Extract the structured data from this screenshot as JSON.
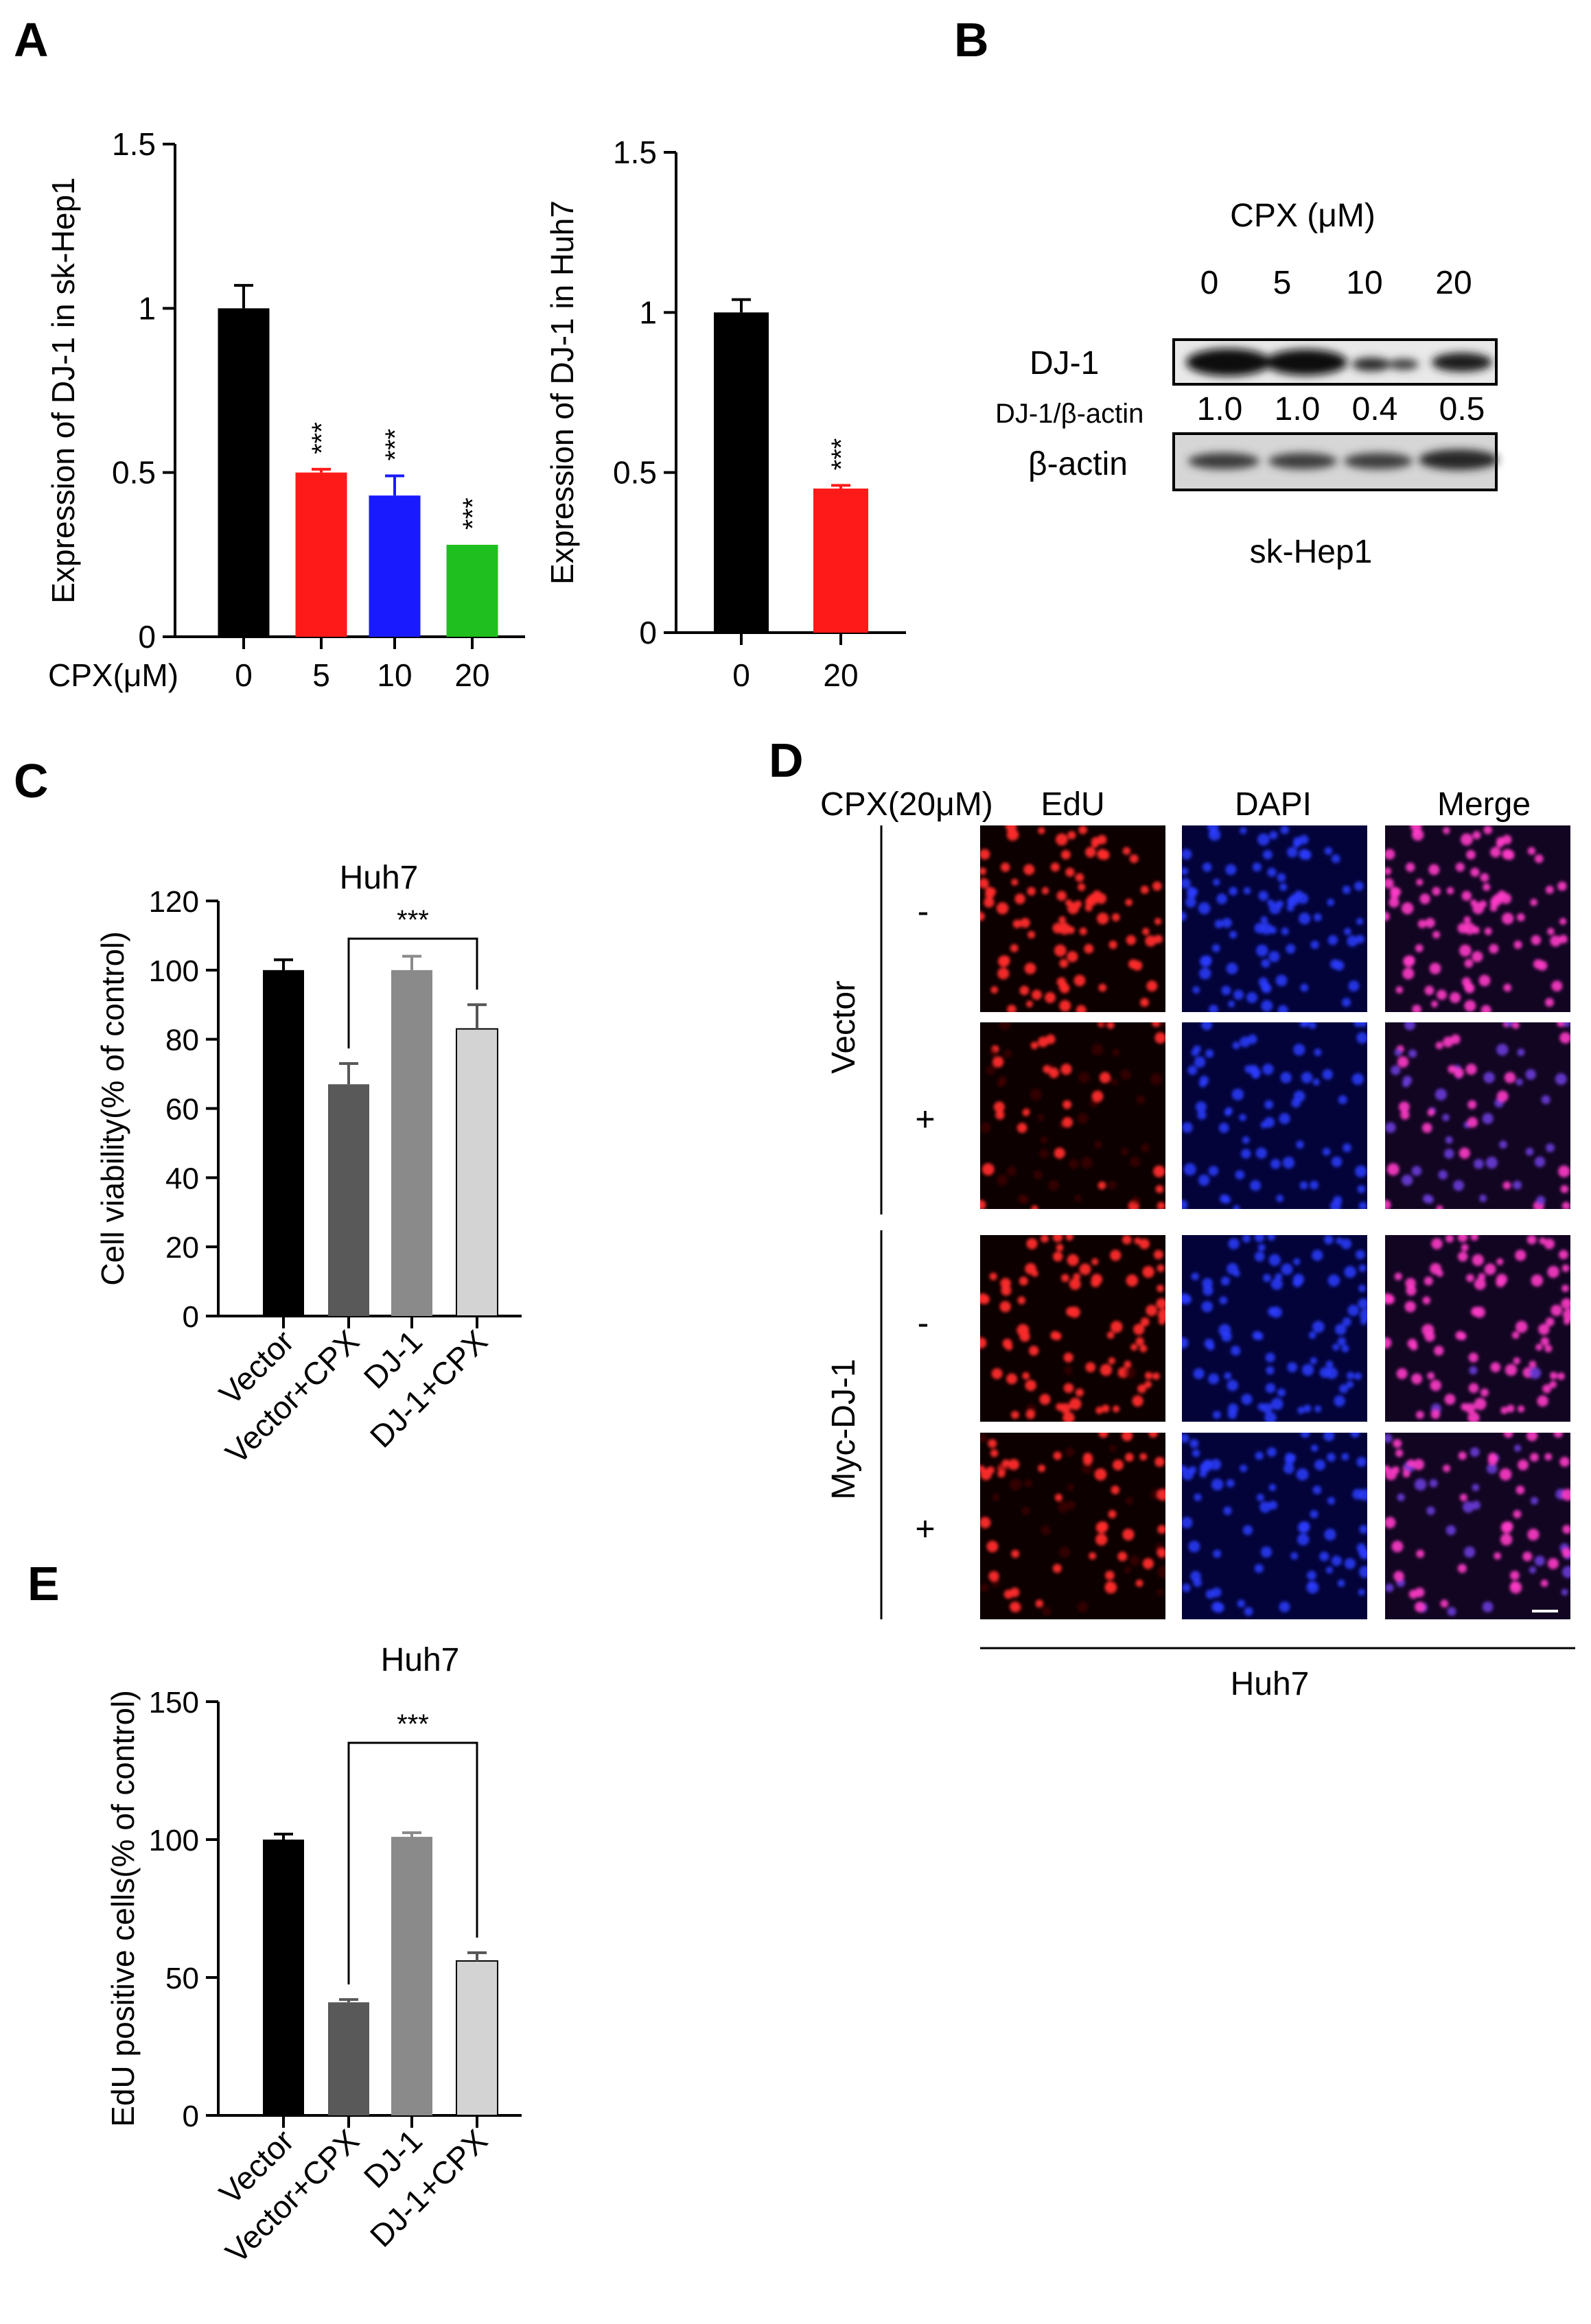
{
  "panel_letters": {
    "A": "A",
    "B": "B",
    "C": "C",
    "D": "D",
    "E": "E"
  },
  "significance": "***",
  "colors": {
    "black": "#000000",
    "red": "#ff1a1a",
    "blue": "#1a1aff",
    "green": "#1fbf1f",
    "dark_gray": "#595959",
    "mid_gray": "#8a8a8a",
    "light_gray": "#d3d3d3"
  },
  "chart_data": [
    {
      "id": "A1",
      "type": "bar",
      "title": "",
      "ylabel": "Expression of DJ-1 in sk-Hep1",
      "xlabel_prefix": "CPX(μM)",
      "categories": [
        "0",
        "5",
        "10",
        "20"
      ],
      "values": [
        1.0,
        0.5,
        0.43,
        0.28
      ],
      "errors": [
        0.07,
        0.01,
        0.06,
        0.0
      ],
      "colors": [
        "#000000",
        "#ff1a1a",
        "#1a1aff",
        "#1fbf1f"
      ],
      "significance": [
        "",
        "***",
        "***",
        "***"
      ],
      "ylim": [
        0,
        1.5
      ],
      "yticks": [
        "0",
        "0.5",
        "1",
        "1.5"
      ]
    },
    {
      "id": "A2",
      "type": "bar",
      "title": "",
      "ylabel": "Expression of DJ-1 in Huh7",
      "categories": [
        "0",
        "20"
      ],
      "values": [
        1.0,
        0.45
      ],
      "errors": [
        0.04,
        0.01
      ],
      "colors": [
        "#000000",
        "#ff1a1a"
      ],
      "significance": [
        "",
        "***"
      ],
      "ylim": [
        0,
        1.5
      ],
      "yticks": [
        "0",
        "0.5",
        "1",
        "1.5"
      ]
    },
    {
      "id": "C",
      "type": "bar",
      "title": "Huh7",
      "ylabel": "Cell viability(% of control)",
      "categories": [
        "Vector",
        "Vector+CPX",
        "DJ-1",
        "DJ-1+CPX"
      ],
      "values": [
        100,
        67,
        100,
        83
      ],
      "errors": [
        3,
        6,
        4,
        7
      ],
      "colors": [
        "#000000",
        "#595959",
        "#8a8a8a",
        "#d3d3d3"
      ],
      "bracket": {
        "from": 1,
        "to": 3,
        "label": "***"
      },
      "ylim": [
        0,
        120
      ],
      "yticks": [
        "0",
        "20",
        "40",
        "60",
        "80",
        "100",
        "120"
      ]
    },
    {
      "id": "E",
      "type": "bar",
      "title": "Huh7",
      "ylabel": "EdU positive cells(% of control)",
      "categories": [
        "Vector",
        "Vector+CPX",
        "DJ-1",
        "DJ-1+CPX"
      ],
      "values": [
        100,
        41,
        101,
        56
      ],
      "errors": [
        2,
        1,
        1.5,
        3
      ],
      "colors": [
        "#000000",
        "#595959",
        "#8a8a8a",
        "#d3d3d3"
      ],
      "bracket": {
        "from": 1,
        "to": 3,
        "label": "***"
      },
      "ylim": [
        0,
        150
      ],
      "yticks": [
        "0",
        "50",
        "100",
        "150"
      ]
    }
  ],
  "western_blot": {
    "header": "CPX (μM)",
    "doses": [
      "0",
      "5",
      "10",
      "20"
    ],
    "band1_label": "DJ-1",
    "ratio_label": "DJ-1/β-actin",
    "ratios": [
      "1.0",
      "1.0",
      "0.4",
      "0.5"
    ],
    "band2_label": "β-actin",
    "footer": "sk-Hep1"
  },
  "microscopy": {
    "treatment_label": "CPX(20μM)",
    "columns": [
      "EdU",
      "DAPI",
      "Merge"
    ],
    "groups": [
      "Vector",
      "Myc-DJ-1"
    ],
    "row_signs": [
      "-",
      "+",
      "-",
      "+"
    ],
    "footer": "Huh7"
  }
}
